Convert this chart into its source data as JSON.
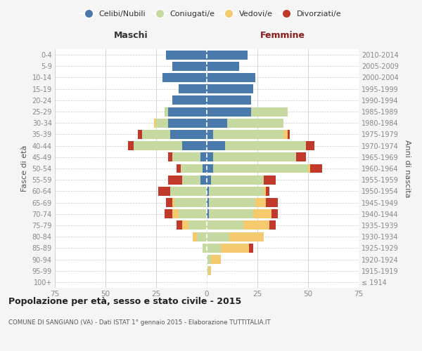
{
  "age_groups": [
    "100+",
    "95-99",
    "90-94",
    "85-89",
    "80-84",
    "75-79",
    "70-74",
    "65-69",
    "60-64",
    "55-59",
    "50-54",
    "45-49",
    "40-44",
    "35-39",
    "30-34",
    "25-29",
    "20-24",
    "15-19",
    "10-14",
    "5-9",
    "0-4"
  ],
  "birth_years": [
    "≤ 1914",
    "1915-1919",
    "1920-1924",
    "1925-1929",
    "1930-1934",
    "1935-1939",
    "1940-1944",
    "1945-1949",
    "1950-1954",
    "1955-1959",
    "1960-1964",
    "1965-1969",
    "1970-1974",
    "1975-1979",
    "1980-1984",
    "1985-1989",
    "1990-1994",
    "1995-1999",
    "2000-2004",
    "2005-2009",
    "2010-2014"
  ],
  "males": {
    "celibi": [
      0,
      0,
      0,
      0,
      0,
      0,
      0,
      0,
      0,
      3,
      2,
      3,
      12,
      18,
      19,
      19,
      17,
      14,
      22,
      17,
      20
    ],
    "coniugati": [
      0,
      0,
      0,
      2,
      5,
      9,
      14,
      16,
      18,
      9,
      11,
      14,
      24,
      14,
      6,
      2,
      0,
      0,
      0,
      0,
      0
    ],
    "vedovi": [
      0,
      0,
      0,
      0,
      2,
      3,
      3,
      1,
      0,
      0,
      0,
      0,
      0,
      0,
      1,
      0,
      0,
      0,
      0,
      0,
      0
    ],
    "divorziati": [
      0,
      0,
      0,
      0,
      0,
      3,
      4,
      3,
      6,
      7,
      2,
      2,
      3,
      2,
      0,
      0,
      0,
      0,
      0,
      0,
      0
    ]
  },
  "females": {
    "nubili": [
      0,
      0,
      0,
      0,
      0,
      0,
      1,
      1,
      1,
      2,
      3,
      3,
      9,
      3,
      10,
      22,
      22,
      23,
      24,
      16,
      20
    ],
    "coniugate": [
      0,
      1,
      2,
      7,
      11,
      18,
      22,
      23,
      27,
      26,
      47,
      41,
      40,
      35,
      28,
      18,
      0,
      0,
      0,
      0,
      0
    ],
    "vedove": [
      0,
      1,
      5,
      14,
      17,
      13,
      9,
      5,
      1,
      0,
      1,
      0,
      0,
      2,
      0,
      0,
      0,
      0,
      0,
      0,
      0
    ],
    "divorziate": [
      0,
      0,
      0,
      2,
      0,
      3,
      3,
      6,
      2,
      6,
      6,
      5,
      4,
      1,
      0,
      0,
      0,
      0,
      0,
      0,
      0
    ]
  },
  "colors": {
    "celibi": "#4a7aab",
    "coniugati": "#c5d9a0",
    "vedovi": "#f5c96e",
    "divorziati": "#c0392b"
  },
  "xlim": 75,
  "title": "Popolazione per età, sesso e stato civile - 2015",
  "subtitle": "COMUNE DI SANGIANO (VA) - Dati ISTAT 1° gennaio 2015 - Elaborazione TUTTITALIA.IT",
  "ylabel_left": "Fasce di età",
  "ylabel_right": "Anni di nascita",
  "xlabel_left": "Maschi",
  "xlabel_right": "Femmine",
  "legend_labels": [
    "Celibi/Nubili",
    "Coniugati/e",
    "Vedovi/e",
    "Divorziati/e"
  ],
  "bg_color": "#f5f5f5",
  "plot_bg": "#ffffff",
  "bar_height": 0.8,
  "grid_color": "#cccccc",
  "tick_color": "#888888",
  "label_color": "#555555",
  "title_color": "#222222",
  "maschi_color": "#333333",
  "femmine_color": "#8b1a1a"
}
